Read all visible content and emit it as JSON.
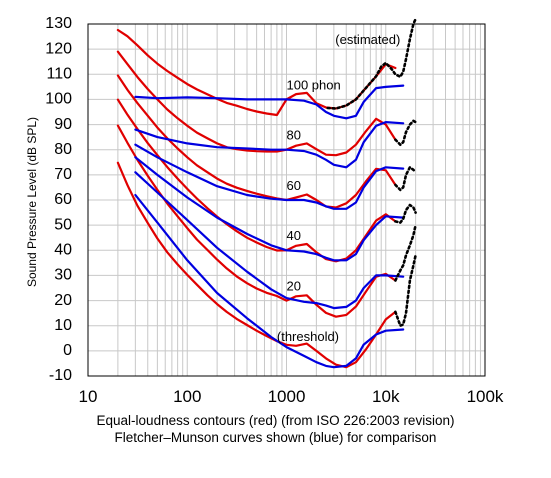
{
  "chart_data": {
    "type": "line",
    "ylabel": "Sound Pressure Level (dB SPL)",
    "x_scale": "log",
    "xlim": [
      10,
      100000
    ],
    "ylim": [
      -10,
      130
    ],
    "x_ticks": [
      10,
      100,
      1000,
      10000,
      100000
    ],
    "x_tick_labels": [
      "10",
      "100",
      "1000",
      "10k",
      "100k"
    ],
    "y_ticks": [
      -10,
      0,
      10,
      20,
      30,
      40,
      50,
      60,
      70,
      80,
      90,
      100,
      110,
      120,
      130
    ],
    "y_tick_labels": [
      "-10",
      "0",
      "10",
      "20",
      "30",
      "40",
      "50",
      "60",
      "70",
      "80",
      "90",
      "100",
      "110",
      "120",
      "130"
    ],
    "grid": true,
    "caption_lines": [
      "Equal-loudness contours (red) (from ISO 226:2003 revision)",
      "Fletcher–Munson curves shown (blue) for comparison"
    ],
    "annotations": [
      {
        "text": "(estimated)",
        "x": 3100,
        "y": 122
      },
      {
        "text": "100 phon",
        "x": 1000,
        "y": 104
      },
      {
        "text": "80",
        "x": 1000,
        "y": 84
      },
      {
        "text": "60",
        "x": 1000,
        "y": 64
      },
      {
        "text": "40",
        "x": 1000,
        "y": 44
      },
      {
        "text": "20",
        "x": 1000,
        "y": 24
      },
      {
        "text": "(threshold)",
        "x": 800,
        "y": 4
      }
    ],
    "colors": {
      "iso": "#e00000",
      "fletcher": "#0000e0",
      "estimated": "#000000"
    },
    "series": [
      {
        "group": "iso",
        "x": [
          20,
          25,
          31.5,
          40,
          50,
          63,
          80,
          100,
          125,
          160,
          200,
          250,
          315,
          400,
          500,
          630,
          800,
          1000,
          1250,
          1600,
          2000,
          2500,
          3150,
          4000,
          5000,
          6300,
          8000,
          10000,
          12500
        ],
        "y": [
          127.6,
          125.1,
          121.5,
          117.5,
          114.2,
          111.3,
          108.6,
          106.1,
          104.0,
          102.0,
          100.2,
          98.6,
          97.5,
          96.2,
          95.2,
          94.4,
          93.8,
          100.0,
          102.1,
          102.6,
          98.5,
          96.8,
          96.4,
          97.6,
          100.0,
          104.5,
          109.2,
          114.0,
          112.5
        ]
      },
      {
        "group": "iso",
        "x": [
          20,
          25,
          31.5,
          40,
          50,
          63,
          80,
          100,
          125,
          160,
          200,
          250,
          315,
          400,
          500,
          630,
          800,
          1000,
          1250,
          1600,
          2000,
          2500,
          3150,
          4000,
          5000,
          6300,
          8000,
          10000,
          12500
        ],
        "y": [
          119.0,
          114.0,
          108.9,
          104.1,
          100.0,
          96.0,
          92.5,
          89.5,
          86.8,
          84.5,
          82.5,
          81.0,
          80.2,
          79.7,
          79.4,
          79.3,
          79.3,
          80.0,
          81.6,
          82.5,
          80.2,
          78.0,
          77.8,
          78.9,
          82.0,
          87.3,
          92.3,
          90.0,
          84.0
        ]
      },
      {
        "group": "iso",
        "x": [
          20,
          25,
          31.5,
          40,
          50,
          63,
          80,
          100,
          125,
          160,
          200,
          250,
          315,
          400,
          500,
          630,
          800,
          1000,
          1250,
          1600,
          2000,
          2500,
          3150,
          4000,
          5000,
          6300,
          8000,
          10000,
          12500
        ],
        "y": [
          109.5,
          103.8,
          98.5,
          93.5,
          88.8,
          84.5,
          80.5,
          77.0,
          73.8,
          71.0,
          68.5,
          66.5,
          64.9,
          63.6,
          62.5,
          61.5,
          60.6,
          60.0,
          61.0,
          62.2,
          60.0,
          57.4,
          57.0,
          58.7,
          62.0,
          67.3,
          72.4,
          71.8,
          66.0
        ]
      },
      {
        "group": "iso",
        "x": [
          20,
          25,
          31.5,
          40,
          50,
          63,
          80,
          100,
          125,
          160,
          200,
          250,
          315,
          400,
          500,
          630,
          800,
          1000,
          1250,
          1600,
          2000,
          2500,
          3150,
          4000,
          5000,
          6300,
          8000,
          10000,
          12500
        ],
        "y": [
          99.9,
          93.9,
          88.2,
          82.6,
          77.8,
          73.1,
          68.5,
          64.4,
          60.6,
          56.7,
          53.4,
          50.4,
          47.6,
          45.0,
          43.1,
          41.3,
          39.9,
          40.0,
          41.8,
          42.5,
          39.2,
          36.5,
          35.6,
          36.7,
          40.0,
          45.8,
          51.8,
          54.3,
          51.5
        ]
      },
      {
        "group": "iso",
        "x": [
          20,
          25,
          31.5,
          40,
          50,
          63,
          80,
          100,
          125,
          160,
          200,
          250,
          315,
          400,
          500,
          630,
          800,
          1000,
          1250,
          1600,
          2000,
          2500,
          3150,
          4000,
          5000,
          6300,
          8000,
          10000,
          12500
        ],
        "y": [
          89.6,
          82.7,
          75.9,
          69.6,
          64.0,
          58.6,
          53.5,
          48.8,
          44.3,
          40.1,
          36.3,
          32.8,
          29.6,
          26.9,
          24.8,
          23.1,
          21.8,
          20.0,
          21.7,
          22.1,
          18.3,
          15.1,
          13.6,
          14.3,
          17.6,
          23.5,
          29.5,
          30.6,
          28.0
        ]
      },
      {
        "group": "iso",
        "x": [
          20,
          25,
          31.5,
          40,
          50,
          63,
          80,
          100,
          125,
          160,
          200,
          250,
          315,
          400,
          500,
          630,
          800,
          1000,
          1250,
          1600,
          2000,
          2500,
          3150,
          4000,
          5000,
          6300,
          8000,
          10000,
          12500
        ],
        "y": [
          74.8,
          65.9,
          57.7,
          50.8,
          44.7,
          39.2,
          34.4,
          30.2,
          26.3,
          22.1,
          18.6,
          15.5,
          12.7,
          10.3,
          8.0,
          5.9,
          3.9,
          2.4,
          2.0,
          2.9,
          0.0,
          -3.0,
          -5.5,
          -6.5,
          -4.5,
          0.5,
          6.5,
          12.5,
          15.5
        ]
      },
      {
        "group": "fletcher",
        "x": [
          30,
          50,
          100,
          200,
          400,
          700,
          1000,
          1500,
          2000,
          2500,
          3000,
          4000,
          5000,
          6000,
          8000,
          10000,
          15000
        ],
        "y": [
          101.0,
          100.5,
          100.8,
          100.5,
          100.0,
          100.0,
          100.0,
          99.5,
          98.0,
          95.0,
          93.5,
          92.5,
          93.5,
          99.0,
          104.5,
          105.0,
          105.5
        ]
      },
      {
        "group": "fletcher",
        "x": [
          30,
          50,
          100,
          200,
          400,
          700,
          1000,
          1500,
          2000,
          2500,
          3000,
          4000,
          5000,
          6000,
          8000,
          10000,
          15000
        ],
        "y": [
          88.0,
          85.0,
          82.5,
          81.0,
          80.5,
          80.0,
          80.0,
          79.5,
          78.0,
          76.0,
          74.0,
          73.0,
          76.0,
          83.0,
          89.5,
          91.0,
          90.5
        ]
      },
      {
        "group": "fletcher",
        "x": [
          30,
          50,
          100,
          200,
          400,
          700,
          1000,
          1500,
          2000,
          2500,
          3000,
          4000,
          5000,
          6000,
          8000,
          10000,
          15000
        ],
        "y": [
          82.0,
          77.0,
          71.0,
          65.5,
          62.0,
          60.5,
          60.0,
          60.0,
          59.0,
          57.5,
          56.5,
          56.5,
          59.0,
          65.0,
          71.5,
          73.0,
          72.5
        ]
      },
      {
        "group": "fletcher",
        "x": [
          30,
          50,
          100,
          200,
          400,
          700,
          1000,
          1500,
          2000,
          2500,
          3000,
          4000,
          5000,
          6000,
          8000,
          10000,
          15000
        ],
        "y": [
          77.0,
          70.0,
          61.0,
          53.0,
          46.5,
          42.0,
          40.0,
          39.5,
          38.5,
          37.0,
          36.0,
          36.0,
          38.5,
          44.0,
          50.0,
          53.5,
          53.0
        ]
      },
      {
        "group": "fletcher",
        "x": [
          30,
          50,
          100,
          200,
          400,
          700,
          1000,
          1500,
          2000,
          2500,
          3000,
          4000,
          5000,
          6000,
          8000,
          10000,
          15000
        ],
        "y": [
          71.0,
          63.0,
          52.0,
          41.0,
          31.5,
          24.5,
          21.0,
          19.5,
          19.0,
          18.0,
          17.0,
          17.5,
          20.0,
          25.0,
          30.0,
          30.0,
          29.5
        ]
      },
      {
        "group": "fletcher",
        "x": [
          30,
          50,
          100,
          200,
          400,
          700,
          1000,
          1500,
          2000,
          2500,
          3000,
          4000,
          5000,
          6000,
          8000,
          10000,
          15000
        ],
        "y": [
          62.0,
          51.0,
          36.0,
          23.0,
          13.0,
          5.5,
          1.5,
          -2.0,
          -4.5,
          -6.0,
          -6.5,
          -6.0,
          -3.0,
          2.5,
          6.5,
          8.0,
          8.5
        ]
      },
      {
        "group": "estimated",
        "x": [
          2600,
          3150,
          4000,
          5000,
          6300,
          8000,
          9000,
          10000,
          11500,
          12500,
          14000,
          15000,
          16000,
          17500,
          19000,
          20000
        ],
        "y": [
          96.6,
          96.4,
          97.6,
          100.0,
          104.5,
          109.2,
          113.0,
          114.5,
          112.0,
          110.0,
          109.0,
          111.0,
          116.0,
          124.0,
          130.0,
          132.0
        ]
      },
      {
        "group": "estimated",
        "x": [
          12500,
          14000,
          15000,
          16000,
          17500,
          19000,
          20000
        ],
        "y": [
          84.0,
          82.0,
          83.0,
          87.0,
          90.0,
          91.5,
          91.0
        ]
      },
      {
        "group": "estimated",
        "x": [
          12500,
          14000,
          15000,
          16000,
          17500,
          19000,
          20000
        ],
        "y": [
          66.0,
          64.0,
          65.0,
          70.0,
          73.0,
          72.0,
          71.0
        ]
      },
      {
        "group": "estimated",
        "x": [
          12500,
          14000,
          15000,
          16000,
          17500,
          19000,
          20000
        ],
        "y": [
          51.5,
          51.0,
          52.5,
          56.0,
          58.0,
          57.0,
          55.0
        ]
      },
      {
        "group": "estimated",
        "x": [
          12500,
          14000,
          15000,
          16000,
          17500,
          19000,
          20000
        ],
        "y": [
          28.0,
          32.0,
          34.0,
          38.0,
          42.0,
          46.0,
          50.0
        ]
      },
      {
        "group": "estimated",
        "x": [
          12500,
          14000,
          15000,
          16000,
          17500,
          19000,
          20000
        ],
        "y": [
          15.5,
          10.0,
          10.5,
          15.0,
          28.0,
          34.0,
          38.0
        ]
      }
    ]
  }
}
